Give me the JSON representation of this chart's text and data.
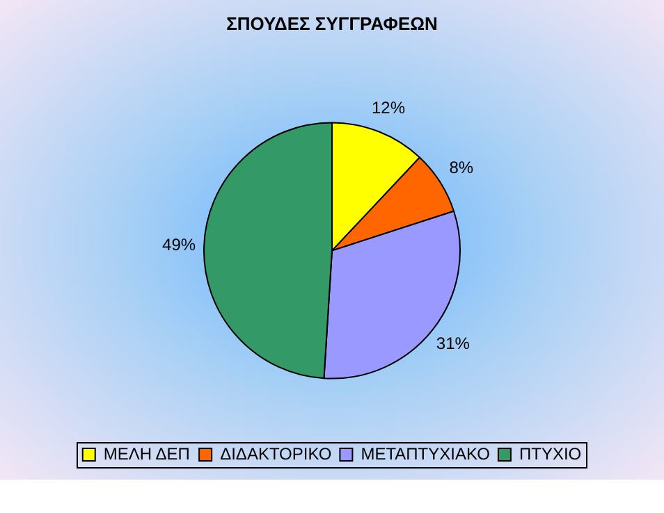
{
  "chart_data": {
    "type": "pie",
    "title": "ΣΠΟΥΔΕΣ ΣΥΓΓΡΑΦΕΩΝ",
    "categories": [
      "ΜΕΛΗ ΔΕΠ",
      "ΔΙΔΑΚΤΟΡΙΚΟ",
      "ΜΕΤΑΠΤΥΧΙΑΚΟ",
      "ΠΤΥΧΙΟ"
    ],
    "values": [
      12,
      8,
      31,
      49
    ],
    "value_labels": [
      "12%",
      "8%",
      "31%",
      "49%"
    ],
    "colors": [
      "#ffff00",
      "#ff6600",
      "#9999ff",
      "#339966"
    ],
    "legend": "bottom"
  }
}
